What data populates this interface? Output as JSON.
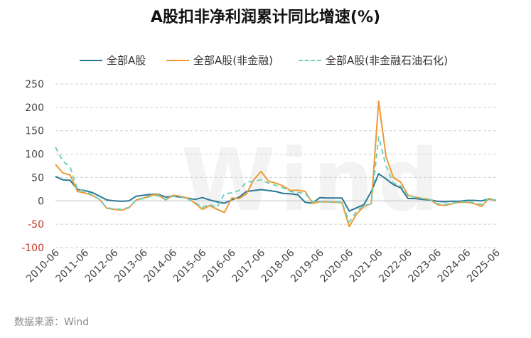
{
  "title": "A股扣非净利润累计同比增速(%)",
  "source": "数据来源：Wind",
  "watermark": "Wind",
  "chart_data": {
    "type": "line",
    "title": "A股扣非净利润累计同比增速(%)",
    "ylim": [
      -100,
      250
    ],
    "yticks": [
      -100,
      -50,
      0,
      50,
      100,
      150,
      200,
      250
    ],
    "grid": true,
    "legend_position": "top",
    "x_tick_labels": [
      "2010-06",
      "2011-06",
      "2012-06",
      "2013-06",
      "2014-06",
      "2015-06",
      "2016-06",
      "2017-06",
      "2018-06",
      "2019-06",
      "2020-06",
      "2021-06",
      "2022-06",
      "2023-06",
      "2024-06",
      "2025-06"
    ],
    "x": [
      "2010-06",
      "2010-09",
      "2010-12",
      "2011-03",
      "2011-06",
      "2011-09",
      "2011-12",
      "2012-03",
      "2012-06",
      "2012-09",
      "2012-12",
      "2013-03",
      "2013-06",
      "2013-09",
      "2013-12",
      "2014-03",
      "2014-06",
      "2014-09",
      "2014-12",
      "2015-03",
      "2015-06",
      "2015-09",
      "2015-12",
      "2016-03",
      "2016-06",
      "2016-09",
      "2016-12",
      "2017-03",
      "2017-06",
      "2017-09",
      "2017-12",
      "2018-03",
      "2018-06",
      "2018-09",
      "2018-12",
      "2019-03",
      "2019-06",
      "2019-09",
      "2019-12",
      "2020-03",
      "2020-06",
      "2020-09",
      "2020-12",
      "2021-03",
      "2021-06",
      "2021-09",
      "2021-12",
      "2022-03",
      "2022-06",
      "2022-09",
      "2022-12",
      "2023-03",
      "2023-06",
      "2023-09",
      "2023-12",
      "2024-03",
      "2024-06",
      "2024-09",
      "2024-12",
      "2025-03",
      "2025-06"
    ],
    "series": [
      {
        "name": "全部A股",
        "color": "#2a7896",
        "dash": "solid",
        "values": [
          52,
          45,
          44,
          24,
          22,
          18,
          10,
          2,
          0,
          -1,
          0,
          10,
          12,
          14,
          14,
          8,
          10,
          8,
          6,
          3,
          7,
          2,
          -2,
          -5,
          2,
          8,
          20,
          22,
          24,
          22,
          20,
          16,
          15,
          13,
          -3,
          -5,
          7,
          6,
          6,
          6,
          -22,
          -15,
          -8,
          20,
          58,
          47,
          35,
          28,
          5,
          5,
          3,
          2,
          -1,
          -2,
          -1,
          -1,
          1,
          1,
          0,
          4,
          1
        ],
        "color_hex": "#2a7896"
      },
      {
        "name": "全部A股(非金融)",
        "color": "#ee9a31",
        "dash": "solid",
        "values": [
          78,
          60,
          55,
          20,
          17,
          12,
          3,
          -16,
          -18,
          -20,
          -15,
          2,
          6,
          12,
          13,
          2,
          12,
          10,
          6,
          -5,
          -18,
          -10,
          -18,
          -25,
          6,
          5,
          15,
          45,
          63,
          42,
          38,
          32,
          22,
          23,
          20,
          -5,
          -2,
          -2,
          -3,
          -4,
          -55,
          -28,
          -12,
          -6,
          213,
          95,
          50,
          40,
          12,
          8,
          5,
          3,
          -8,
          -10,
          -6,
          -3,
          -3,
          -6,
          -12,
          5,
          0
        ]
      },
      {
        "name": "全部A股(非金融石油石化)",
        "color": "#6fcfbd",
        "dash": "dashed",
        "values": [
          115,
          85,
          72,
          25,
          20,
          13,
          3,
          -15,
          -17,
          -18,
          -14,
          2,
          5,
          10,
          11,
          3,
          10,
          9,
          4,
          -3,
          -14,
          -8,
          -14,
          15,
          17,
          22,
          40,
          42,
          45,
          38,
          33,
          28,
          20,
          18,
          16,
          -2,
          -2,
          -2,
          -2,
          -3,
          -45,
          -22,
          -10,
          -6,
          137,
          75,
          38,
          32,
          10,
          8,
          5,
          3,
          -6,
          -8,
          -5,
          -2,
          -2,
          -4,
          -8,
          6,
          1
        ]
      }
    ]
  }
}
